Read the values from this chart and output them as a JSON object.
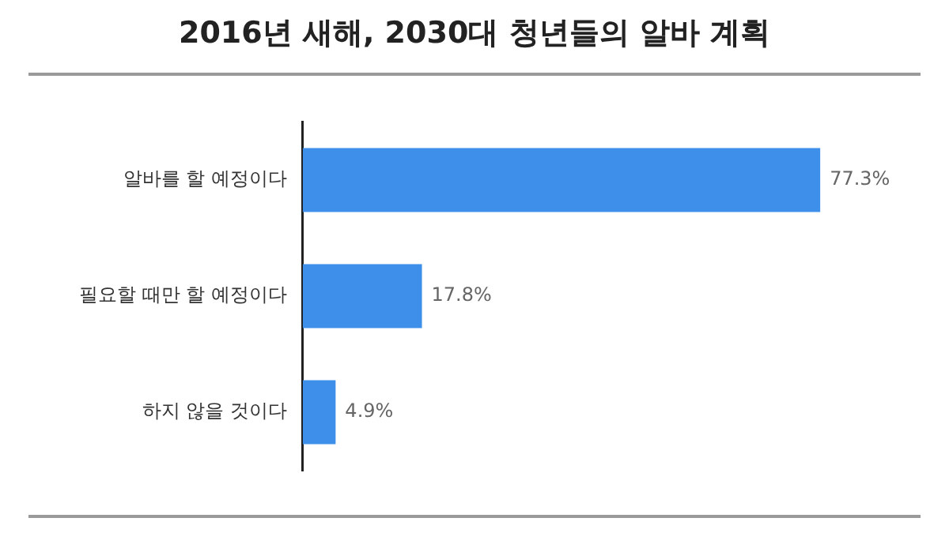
{
  "chart_data": {
    "type": "bar",
    "orientation": "horizontal",
    "title": "2016년 새해, 2030대 청년들의 알바 계획",
    "categories": [
      "알바를 할 예정이다",
      "필요할 때만 할 예정이다",
      "하지 않을 것이다"
    ],
    "values": [
      77.3,
      17.8,
      4.9
    ],
    "value_labels": [
      "77.3%",
      "17.8%",
      "4.9%"
    ],
    "color": "#3d8fe9",
    "legend": false,
    "tick_labels": "y"
  }
}
